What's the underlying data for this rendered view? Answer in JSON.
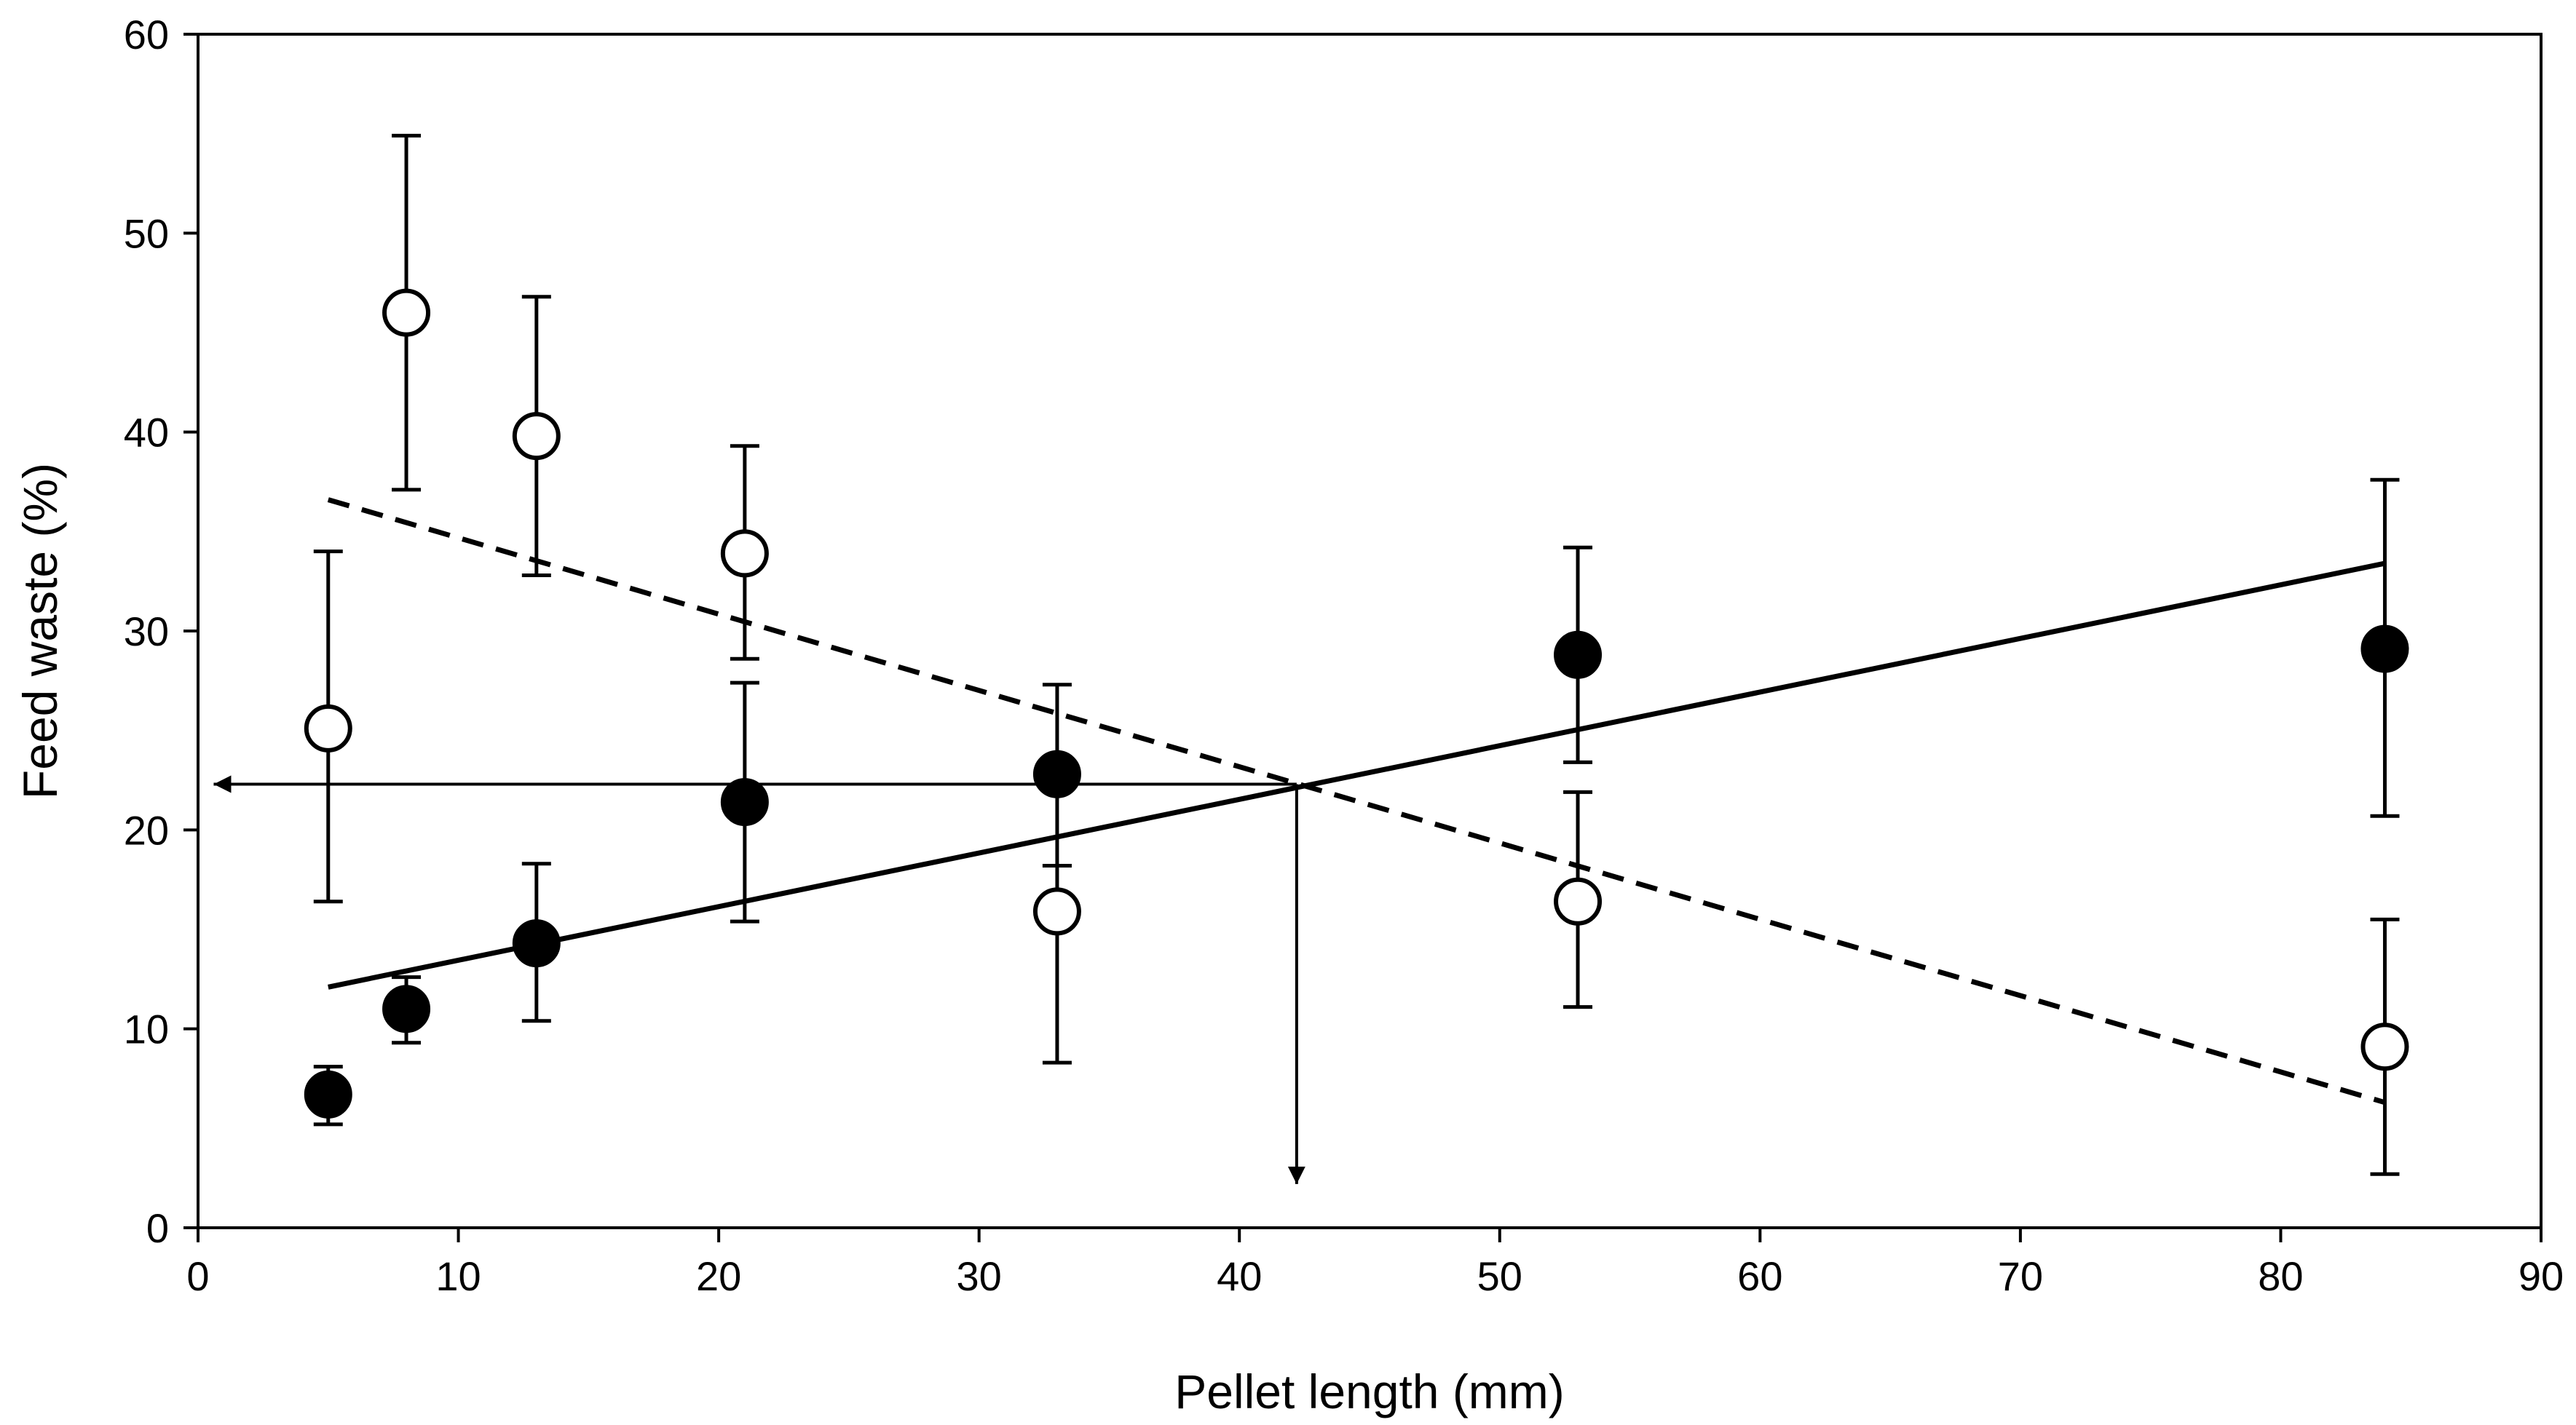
{
  "chart_data": {
    "type": "scatter",
    "title": "",
    "xlabel": "Pellet length (mm)",
    "ylabel": "Feed waste (%)",
    "xlim": [
      0,
      90
    ],
    "ylim": [
      0,
      60
    ],
    "xticks": [
      0,
      10,
      20,
      30,
      40,
      50,
      60,
      70,
      80,
      90
    ],
    "yticks": [
      0,
      10,
      20,
      30,
      40,
      50,
      60
    ],
    "grid": false,
    "legend": "none",
    "series": [
      {
        "name": "filled",
        "marker": "filled-circle",
        "color": "#000000",
        "points": [
          {
            "x": 5,
            "y": 6.7,
            "err_low": 5.2,
            "err_high": 8.1
          },
          {
            "x": 8,
            "y": 11.0,
            "err_low": 9.3,
            "err_high": 12.6
          },
          {
            "x": 13,
            "y": 14.3,
            "err_low": 10.4,
            "err_high": 18.3
          },
          {
            "x": 21,
            "y": 21.4,
            "err_low": 15.4,
            "err_high": 27.4
          },
          {
            "x": 33,
            "y": 22.8,
            "err_low": 18.2,
            "err_high": 27.3
          },
          {
            "x": 53,
            "y": 28.8,
            "err_low": 23.4,
            "err_high": 34.2
          },
          {
            "x": 84,
            "y": 29.1,
            "err_low": 20.7,
            "err_high": 37.6
          }
        ],
        "trendline": {
          "style": "solid",
          "x": [
            5,
            84
          ],
          "y": [
            12.1,
            33.4
          ]
        }
      },
      {
        "name": "open",
        "marker": "open-circle",
        "color": "#000000",
        "points": [
          {
            "x": 5,
            "y": 25.1,
            "err_low": 16.4,
            "err_high": 34.0
          },
          {
            "x": 8,
            "y": 46.0,
            "err_low": 37.1,
            "err_high": 54.9
          },
          {
            "x": 13,
            "y": 39.8,
            "err_low": 32.8,
            "err_high": 46.8
          },
          {
            "x": 21,
            "y": 33.9,
            "err_low": 28.6,
            "err_high": 39.3
          },
          {
            "x": 33,
            "y": 15.9,
            "err_low": 8.3,
            "err_high": 18.2
          },
          {
            "x": 53,
            "y": 16.4,
            "err_low": 11.1,
            "err_high": 21.9
          },
          {
            "x": 84,
            "y": 9.1,
            "err_low": 2.7,
            "err_high": 15.5
          }
        ],
        "trendline": {
          "style": "dashed",
          "x": [
            5,
            84
          ],
          "y": [
            36.6,
            6.3
          ]
        }
      }
    ],
    "annotations": {
      "intersection": {
        "x": 42.2,
        "y": 22.3
      },
      "arrow_to_y_axis": {
        "from_x": 42.2,
        "to_x": 0.6,
        "y": 22.3
      },
      "arrow_to_x_axis": {
        "x": 42.2,
        "from_y": 22.3,
        "to_y": 2.2
      }
    }
  }
}
